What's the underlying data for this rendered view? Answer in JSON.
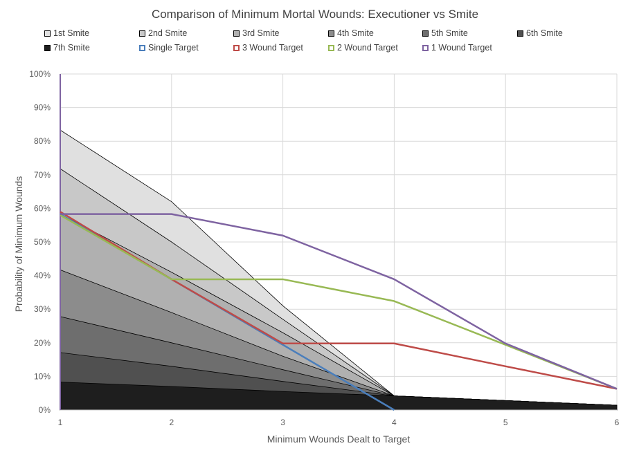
{
  "chart_data": {
    "type": "area",
    "title": "Comparison of Minimum Mortal Wounds: Executioner vs Smite",
    "xlabel": "Minimum  Wounds Dealt to Target",
    "ylabel": "Probability of Minimum  Wounds",
    "x": [
      1,
      2,
      3,
      4,
      5,
      6
    ],
    "xlim": [
      1,
      6
    ],
    "ylim": [
      0,
      1
    ],
    "y_ticks": [
      "0%",
      "10%",
      "20%",
      "30%",
      "40%",
      "50%",
      "60%",
      "70%",
      "80%",
      "90%",
      "100%"
    ],
    "x_ticks": [
      "1",
      "2",
      "3",
      "4",
      "5",
      "6"
    ],
    "grid": true,
    "legend_position": "top",
    "area_series": [
      {
        "name": "1st Smite",
        "color": "#e0e0e0",
        "values": [
          0.833,
          0.62,
          0.31,
          0.042,
          0.028,
          0.014
        ]
      },
      {
        "name": "2nd Smite",
        "color": "#c8c8c8",
        "values": [
          0.718,
          0.5,
          0.27,
          0.042,
          0.028,
          0.014
        ]
      },
      {
        "name": "3rd Smite",
        "color": "#b0b0b0",
        "values": [
          0.583,
          0.41,
          0.23,
          0.042,
          0.028,
          0.014
        ]
      },
      {
        "name": "4th Smite",
        "color": "#8c8c8c",
        "values": [
          0.417,
          0.29,
          0.16,
          0.042,
          0.028,
          0.014
        ]
      },
      {
        "name": "5th Smite",
        "color": "#6e6e6e",
        "values": [
          0.278,
          0.2,
          0.12,
          0.042,
          0.028,
          0.014
        ]
      },
      {
        "name": "6th Smite",
        "color": "#505050",
        "values": [
          0.171,
          0.13,
          0.085,
          0.042,
          0.028,
          0.014
        ]
      },
      {
        "name": "7th Smite",
        "color": "#1e1e1e",
        "values": [
          0.083,
          0.07,
          0.055,
          0.042,
          0.028,
          0.014
        ]
      }
    ],
    "line_series": [
      {
        "name": "Single Target",
        "color": "#4a7ebb",
        "x": [
          1,
          2,
          3,
          4
        ],
        "values": [
          0.583,
          0.389,
          0.194,
          0.0
        ]
      },
      {
        "name": "3 Wound Target",
        "color": "#be4b48",
        "x": [
          1,
          2,
          3,
          4,
          5,
          6
        ],
        "values": [
          0.59,
          0.389,
          0.198,
          0.198,
          0.13,
          0.063
        ]
      },
      {
        "name": "2 Wound Target",
        "color": "#98b954",
        "x": [
          1,
          2,
          3,
          4,
          5,
          6
        ],
        "values": [
          0.58,
          0.389,
          0.389,
          0.324,
          0.194,
          0.063
        ]
      },
      {
        "name": "1 Wound Target",
        "color": "#7e63a1",
        "x": [
          1,
          2,
          3,
          4,
          5,
          6
        ],
        "values": [
          0.583,
          0.583,
          0.519,
          0.389,
          0.198,
          0.063
        ]
      }
    ]
  },
  "legend": [
    {
      "label": "1st Smite",
      "color": "#e0e0e0",
      "kind": "area"
    },
    {
      "label": "2nd Smite",
      "color": "#c8c8c8",
      "kind": "area"
    },
    {
      "label": "3rd Smite",
      "color": "#b0b0b0",
      "kind": "area"
    },
    {
      "label": "4th Smite",
      "color": "#8c8c8c",
      "kind": "area"
    },
    {
      "label": "5th Smite",
      "color": "#6e6e6e",
      "kind": "area"
    },
    {
      "label": "6th Smite",
      "color": "#505050",
      "kind": "area"
    },
    {
      "label": "7th Smite",
      "color": "#1e1e1e",
      "kind": "area"
    },
    {
      "label": "Single Target",
      "color": "#4a7ebb",
      "kind": "line"
    },
    {
      "label": "3 Wound Target",
      "color": "#be4b48",
      "kind": "line"
    },
    {
      "label": "2 Wound Target",
      "color": "#98b954",
      "kind": "line"
    },
    {
      "label": "1 Wound Target",
      "color": "#7e63a1",
      "kind": "line"
    }
  ]
}
